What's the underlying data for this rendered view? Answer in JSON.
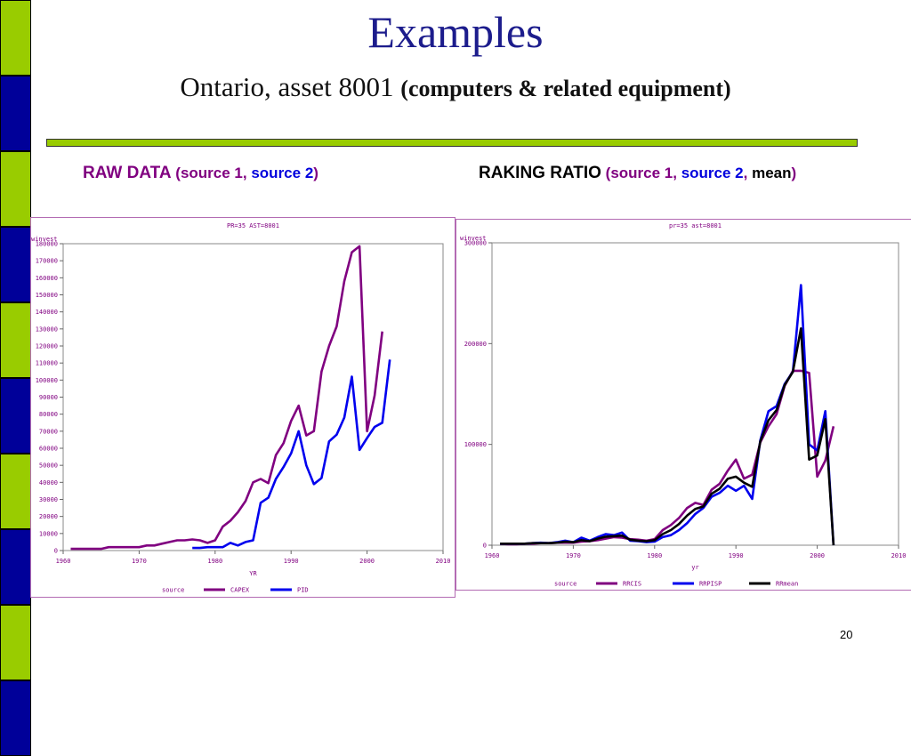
{
  "slide": {
    "title": "Examples",
    "subtitle_plain": "Ontario, asset 8001",
    "subtitle_bold": "(computers & related equipment)",
    "page_number": "20",
    "stripe_colors": [
      "#99cc00",
      "#000099"
    ]
  },
  "headers": {
    "left": {
      "main": "RAW DATA",
      "open": " (",
      "s1": "source 1",
      "sep": ", ",
      "s2": "source 2",
      "close": ")"
    },
    "right": {
      "main": "RAKING RATIO",
      "open": " (",
      "s1": "source 1",
      "sep1": ", ",
      "s2": "source 2",
      "sep2": ", ",
      "mean": "mean",
      "close": ")"
    }
  },
  "chart_data": [
    {
      "type": "line",
      "title": "PR=35 AST=8001",
      "xlabel": "YR",
      "ylabel": "winvest",
      "xlim": [
        1960,
        2010
      ],
      "ylim": [
        0,
        180000
      ],
      "xticks": [
        1960,
        1970,
        1980,
        1990,
        2000,
        2010
      ],
      "yticks": [
        0,
        10000,
        20000,
        30000,
        40000,
        50000,
        60000,
        70000,
        80000,
        90000,
        100000,
        110000,
        120000,
        130000,
        140000,
        150000,
        160000,
        170000,
        180000
      ],
      "legend_title": "source",
      "series": [
        {
          "name": "CAPEX",
          "color": "#800080",
          "x": [
            1961,
            1962,
            1963,
            1964,
            1965,
            1966,
            1967,
            1968,
            1969,
            1970,
            1971,
            1972,
            1973,
            1974,
            1975,
            1976,
            1977,
            1978,
            1979,
            1980,
            1981,
            1982,
            1983,
            1984,
            1985,
            1986,
            1987,
            1988,
            1989,
            1990,
            1991,
            1992,
            1993,
            1994,
            1995,
            1996,
            1997,
            1998,
            1999,
            2000,
            2001,
            2002
          ],
          "y": [
            1000,
            1000,
            1000,
            1000,
            1000,
            2000,
            2000,
            2000,
            2000,
            2000,
            3000,
            3000,
            4000,
            5000,
            6000,
            6000,
            6500,
            6000,
            4500,
            6000,
            14000,
            17500,
            22500,
            29000,
            40000,
            42000,
            39500,
            56000,
            63000,
            76000,
            85000,
            67500,
            70000,
            105000,
            120000,
            131500,
            158000,
            175000,
            178500,
            70000,
            91000,
            128500
          ]
        },
        {
          "name": "PID",
          "color": "#0000ee",
          "x": [
            1977,
            1978,
            1979,
            1980,
            1981,
            1982,
            1983,
            1984,
            1985,
            1986,
            1987,
            1988,
            1989,
            1990,
            1991,
            1992,
            1993,
            1994,
            1995,
            1996,
            1997,
            1998,
            1999,
            2000,
            2001,
            2002,
            2003
          ],
          "y": [
            1500,
            1500,
            2000,
            2000,
            2000,
            4500,
            3000,
            5000,
            6000,
            28000,
            31000,
            42000,
            49000,
            57000,
            70000,
            50000,
            39000,
            42500,
            64000,
            68000,
            78000,
            102000,
            59000,
            66000,
            72500,
            75000,
            112000
          ]
        }
      ]
    },
    {
      "type": "line",
      "title": "pr=35 ast=8001",
      "xlabel": "yr",
      "ylabel": "winvest",
      "xlim": [
        1960,
        2010
      ],
      "ylim": [
        0,
        300000
      ],
      "xticks": [
        1960,
        1970,
        1980,
        1990,
        2000,
        2010
      ],
      "yticks": [
        0,
        100000,
        200000,
        300000
      ],
      "legend_title": "source",
      "series": [
        {
          "name": "RRCIS",
          "color": "#800080",
          "x": [
            1961,
            1962,
            1963,
            1964,
            1965,
            1966,
            1967,
            1968,
            1969,
            1970,
            1971,
            1972,
            1973,
            1974,
            1975,
            1976,
            1977,
            1978,
            1979,
            1980,
            1981,
            1982,
            1983,
            1984,
            1985,
            1986,
            1987,
            1988,
            1989,
            1990,
            1991,
            1992,
            1993,
            1994,
            1995,
            1996,
            1997,
            1998,
            1999,
            2000,
            2001,
            2002
          ],
          "y": [
            1500,
            1000,
            1000,
            1500,
            1500,
            2000,
            2000,
            2500,
            2500,
            2500,
            3500,
            4000,
            5000,
            6500,
            8000,
            7500,
            6000,
            5500,
            4500,
            6000,
            15000,
            20000,
            27000,
            37000,
            42000,
            40000,
            55000,
            61000,
            74000,
            85000,
            66000,
            70000,
            102000,
            118000,
            130000,
            158000,
            173000,
            173000,
            171000,
            68000,
            84000,
            118000
          ]
        },
        {
          "name": "RRPISP",
          "color": "#0000ee",
          "x": [
            1961,
            1962,
            1963,
            1964,
            1965,
            1966,
            1967,
            1968,
            1969,
            1970,
            1971,
            1972,
            1973,
            1974,
            1975,
            1976,
            1977,
            1978,
            1979,
            1980,
            1981,
            1982,
            1983,
            1984,
            1985,
            1986,
            1987,
            1988,
            1989,
            1990,
            1991,
            1992,
            1993,
            1994,
            1995,
            1996,
            1997,
            1998,
            1999,
            2000,
            2001,
            2002
          ],
          "y": [
            1500,
            1500,
            1500,
            1500,
            2000,
            2500,
            2000,
            3000,
            4500,
            3000,
            7500,
            4500,
            8000,
            11000,
            10000,
            12500,
            4500,
            4000,
            3000,
            3500,
            8000,
            10000,
            15000,
            22000,
            31000,
            37000,
            48000,
            52000,
            59000,
            54000,
            59000,
            46000,
            104000,
            133000,
            138000,
            160000,
            172000,
            258000,
            100000,
            94000,
            133000,
            0
          ]
        },
        {
          "name": "RRmean",
          "color": "#000000",
          "x": [
            1961,
            1962,
            1963,
            1964,
            1965,
            1966,
            1967,
            1968,
            1969,
            1970,
            1971,
            1972,
            1973,
            1974,
            1975,
            1976,
            1977,
            1978,
            1979,
            1980,
            1981,
            1982,
            1983,
            1984,
            1985,
            1986,
            1987,
            1988,
            1989,
            1990,
            1991,
            1992,
            1993,
            1994,
            1995,
            1996,
            1997,
            1998,
            1999,
            2000,
            2001,
            2002
          ],
          "y": [
            1500,
            1500,
            1500,
            1500,
            2000,
            2000,
            2000,
            2500,
            3500,
            3000,
            5000,
            4000,
            6500,
            8500,
            9000,
            9500,
            5500,
            4500,
            4000,
            5000,
            11000,
            15000,
            21000,
            29500,
            36000,
            38500,
            51000,
            56000,
            66000,
            68000,
            62000,
            58000,
            103000,
            124000,
            134000,
            159000,
            172000,
            215000,
            85000,
            89000,
            125000,
            0
          ]
        }
      ]
    }
  ]
}
